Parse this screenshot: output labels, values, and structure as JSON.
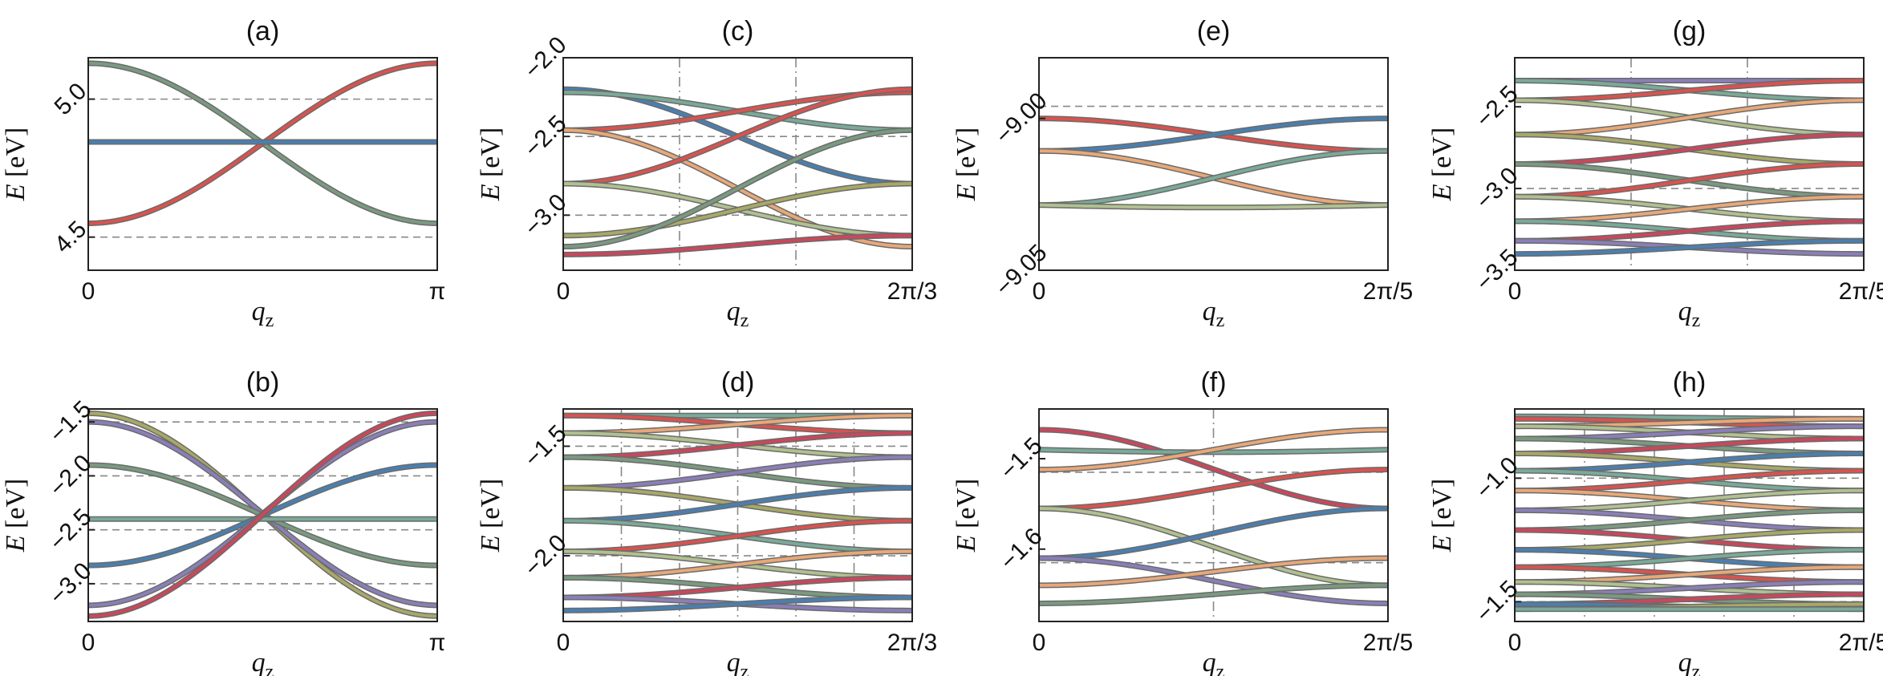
{
  "chart_data": [
    {
      "panel": "a",
      "type": "line",
      "title": "(a)",
      "xlabel": "q_z",
      "ylabel": "E [eV]",
      "xlim": [
        0,
        3.14159
      ],
      "ylim": [
        4.38,
        5.15
      ],
      "xticks": [
        {
          "value": 0,
          "label": "0"
        },
        {
          "value": 3.14159,
          "label": "π"
        }
      ],
      "yticks": [
        {
          "value": 4.5,
          "label": "4.5"
        },
        {
          "value": 5.0,
          "label": "5.0"
        }
      ],
      "hlines": [
        4.5,
        5.0
      ],
      "vlines": [],
      "bands": [
        {
          "name": "band-1",
          "e0": 5.13,
          "e1": 4.55,
          "shape": "cos",
          "color": "#7a9a80"
        },
        {
          "name": "band-2",
          "e0": 4.55,
          "e1": 5.13,
          "shape": "cos",
          "color": "#d9534f"
        },
        {
          "name": "band-3",
          "e0": 4.845,
          "e1": 4.845,
          "shape": "cos",
          "color": "#4a7fb0"
        }
      ]
    },
    {
      "panel": "b",
      "type": "line",
      "title": "(b)",
      "xlabel": "q_z",
      "ylabel": "E [eV]",
      "xlim": [
        0,
        3.14159
      ],
      "ylim": [
        -3.35,
        -1.38
      ],
      "xticks": [
        {
          "value": 0,
          "label": "0"
        },
        {
          "value": 3.14159,
          "label": "π"
        }
      ],
      "yticks": [
        {
          "value": -1.5,
          "label": "−1.5"
        },
        {
          "value": -2.0,
          "label": "−2.0"
        },
        {
          "value": -2.5,
          "label": "−2.5"
        },
        {
          "value": -3.0,
          "label": "−3.0"
        }
      ],
      "hlines": [
        -1.5,
        -2.0,
        -2.5,
        -3.0
      ],
      "vlines": [],
      "bands": [
        {
          "name": "band-1",
          "e0": -1.42,
          "e1": -3.3,
          "shape": "cos",
          "color": "#a8a868"
        },
        {
          "name": "band-2",
          "e0": -1.5,
          "e1": -3.2,
          "shape": "cos",
          "color": "#8a7fb8"
        },
        {
          "name": "band-3",
          "e0": -1.9,
          "e1": -2.83,
          "shape": "cos",
          "color": "#7a9a80"
        },
        {
          "name": "band-4",
          "e0": -2.4,
          "e1": -2.4,
          "shape": "cos",
          "color": "#7aaa98"
        },
        {
          "name": "band-5",
          "e0": -2.83,
          "e1": -1.9,
          "shape": "cos",
          "color": "#4a7fb0"
        },
        {
          "name": "band-6",
          "e0": -3.2,
          "e1": -1.5,
          "shape": "cos",
          "color": "#8a7fb8"
        },
        {
          "name": "band-7",
          "e0": -3.3,
          "e1": -1.42,
          "shape": "cos",
          "color": "#c9485b"
        }
      ]
    },
    {
      "panel": "c",
      "type": "line",
      "title": "(c)",
      "xlabel": "q_z",
      "ylabel": "E [eV]",
      "xlim": [
        0,
        2.0944
      ],
      "ylim": [
        -3.35,
        -2.0
      ],
      "xticks": [
        {
          "value": 0,
          "label": "0"
        },
        {
          "value": 2.0944,
          "label": "2π/3"
        }
      ],
      "yticks": [
        {
          "value": -2.0,
          "label": "−2.0"
        },
        {
          "value": -2.5,
          "label": "−2.5"
        },
        {
          "value": -3.0,
          "label": "−3.0"
        }
      ],
      "hlines": [
        -2.5,
        -3.0
      ],
      "vlines": [
        0.6981,
        1.3963
      ],
      "bands": [
        {
          "name": "band-1",
          "e0": -2.2,
          "e1": -2.8,
          "shape": "cos",
          "color": "#4a7fb0"
        },
        {
          "name": "band-2",
          "e0": -2.22,
          "e1": -2.46,
          "shape": "cos",
          "color": "#7aaa98"
        },
        {
          "name": "band-3",
          "e0": -2.46,
          "e1": -2.22,
          "shape": "cos",
          "color": "#d9534f"
        },
        {
          "name": "band-4",
          "e0": -2.46,
          "e1": -3.2,
          "shape": "cos",
          "color": "#e8a878"
        },
        {
          "name": "band-5",
          "e0": -2.8,
          "e1": -2.2,
          "shape": "cos",
          "color": "#d9534f"
        },
        {
          "name": "band-6",
          "e0": -2.8,
          "e1": -3.13,
          "shape": "cos",
          "color": "#b0c090"
        },
        {
          "name": "band-7",
          "e0": -3.13,
          "e1": -2.8,
          "shape": "cos",
          "color": "#a8a868"
        },
        {
          "name": "band-8",
          "e0": -3.2,
          "e1": -2.46,
          "shape": "cos",
          "color": "#7a9a80"
        },
        {
          "name": "band-9",
          "e0": -3.25,
          "e1": -3.13,
          "shape": "cos",
          "color": "#c9485b"
        }
      ]
    },
    {
      "panel": "e",
      "type": "line",
      "title": "(e)",
      "xlabel": "q_z",
      "ylabel": "E [eV]",
      "xlim": [
        0,
        1.2566
      ],
      "ylim": [
        -9.05,
        -8.98
      ],
      "xticks": [
        {
          "value": 0,
          "label": "0"
        },
        {
          "value": 1.2566,
          "label": "2π/5"
        }
      ],
      "yticks": [
        {
          "value": -9.0,
          "label": "−9.00"
        },
        {
          "value": -9.05,
          "label": "−9.05"
        }
      ],
      "hlines": [
        -8.996
      ],
      "vlines": [],
      "bands": [
        {
          "name": "band-1",
          "e0": -9.0,
          "e1": -9.0107,
          "shape": "cos",
          "color": "#d9534f"
        },
        {
          "name": "band-2",
          "e0": -9.0107,
          "e1": -9.0,
          "shape": "cos",
          "color": "#4a7fb0"
        },
        {
          "name": "band-3",
          "e0": -9.0107,
          "e1": -9.0285,
          "shape": "cos",
          "color": "#e8a878"
        },
        {
          "name": "band-4",
          "e0": -9.0285,
          "e1": -9.0107,
          "shape": "cos",
          "color": "#7aaa98"
        },
        {
          "name": "band-5",
          "e0": -9.0285,
          "e1": -9.0285,
          "shape": "sag",
          "color": "#b0c090"
        }
      ]
    },
    {
      "panel": "g",
      "type": "line",
      "title": "(g)",
      "xlabel": "q_z",
      "ylabel": "E [eV]",
      "xlim": [
        0,
        1.2566
      ],
      "ylim": [
        -3.5,
        -2.2
      ],
      "xticks": [
        {
          "value": 0,
          "label": "0"
        },
        {
          "value": 1.2566,
          "label": "2π/5"
        }
      ],
      "yticks": [
        {
          "value": -2.5,
          "label": "−2.5"
        },
        {
          "value": -3.0,
          "label": "−3.0"
        },
        {
          "value": -3.5,
          "label": "−3.5"
        }
      ],
      "hlines": [
        -3.0
      ],
      "vlines": [
        0.4189,
        0.8378
      ],
      "bands": [
        {
          "name": "band-1",
          "e0": -2.34,
          "e1": -2.34,
          "shape": "cos",
          "color": "#8a7fb8"
        },
        {
          "name": "band-2",
          "e0": -2.34,
          "e1": -2.46,
          "shape": "cos",
          "color": "#7aaa98"
        },
        {
          "name": "band-3",
          "e0": -2.46,
          "e1": -2.34,
          "shape": "cos",
          "color": "#d9534f"
        },
        {
          "name": "band-4",
          "e0": -2.46,
          "e1": -2.67,
          "shape": "cos",
          "color": "#b0c090"
        },
        {
          "name": "band-5",
          "e0": -2.67,
          "e1": -2.46,
          "shape": "cos",
          "color": "#e8a878"
        },
        {
          "name": "band-6",
          "e0": -2.67,
          "e1": -2.85,
          "shape": "cos",
          "color": "#a8a868"
        },
        {
          "name": "band-7",
          "e0": -2.85,
          "e1": -2.67,
          "shape": "cos",
          "color": "#c9485b"
        },
        {
          "name": "band-8",
          "e0": -2.85,
          "e1": -3.05,
          "shape": "cos",
          "color": "#7a9a80"
        },
        {
          "name": "band-9",
          "e0": -3.05,
          "e1": -2.85,
          "shape": "cos",
          "color": "#d9534f"
        },
        {
          "name": "band-10",
          "e0": -3.05,
          "e1": -3.2,
          "shape": "cos",
          "color": "#b0c090"
        },
        {
          "name": "band-11",
          "e0": -3.2,
          "e1": -3.05,
          "shape": "cos",
          "color": "#e8a878"
        },
        {
          "name": "band-12",
          "e0": -3.2,
          "e1": -3.32,
          "shape": "cos",
          "color": "#7aaa98"
        },
        {
          "name": "band-13",
          "e0": -3.32,
          "e1": -3.2,
          "shape": "cos",
          "color": "#c9485b"
        },
        {
          "name": "band-14",
          "e0": -3.32,
          "e1": -3.4,
          "shape": "cos",
          "color": "#8a7fb8"
        },
        {
          "name": "band-15",
          "e0": -3.4,
          "e1": -3.32,
          "shape": "cos",
          "color": "#4a7fb0"
        }
      ]
    },
    {
      "panel": "d",
      "type": "line",
      "title": "(d)",
      "xlabel": "q_z",
      "ylabel": "E [eV]",
      "xlim": [
        0,
        2.0944
      ],
      "ylim": [
        -2.3,
        -1.33
      ],
      "xticks": [
        {
          "value": 0,
          "label": "0"
        },
        {
          "value": 2.0944,
          "label": "2π/3"
        }
      ],
      "yticks": [
        {
          "value": -1.5,
          "label": "−1.5"
        },
        {
          "value": -2.0,
          "label": "−2.0"
        }
      ],
      "hlines": [
        -1.5,
        -2.0
      ],
      "vlines": [
        0.349,
        0.6981,
        1.0472,
        1.3963,
        1.7453
      ],
      "bands": [
        {
          "name": "band-1",
          "e0": -1.36,
          "e1": -1.36,
          "shape": "cos",
          "color": "#7aaa98"
        },
        {
          "name": "band-2",
          "e0": -1.36,
          "e1": -1.44,
          "shape": "cos",
          "color": "#d9534f"
        },
        {
          "name": "band-3",
          "e0": -1.44,
          "e1": -1.36,
          "shape": "cos",
          "color": "#e8a878"
        },
        {
          "name": "band-4",
          "e0": -1.44,
          "e1": -1.55,
          "shape": "cos",
          "color": "#b0c090"
        },
        {
          "name": "band-5",
          "e0": -1.55,
          "e1": -1.44,
          "shape": "cos",
          "color": "#c9485b"
        },
        {
          "name": "band-6",
          "e0": -1.55,
          "e1": -1.69,
          "shape": "cos",
          "color": "#7a9a80"
        },
        {
          "name": "band-7",
          "e0": -1.69,
          "e1": -1.55,
          "shape": "cos",
          "color": "#8a7fb8"
        },
        {
          "name": "band-8",
          "e0": -1.69,
          "e1": -1.84,
          "shape": "cos",
          "color": "#a8a868"
        },
        {
          "name": "band-9",
          "e0": -1.84,
          "e1": -1.69,
          "shape": "cos",
          "color": "#4a7fb0"
        },
        {
          "name": "band-10",
          "e0": -1.84,
          "e1": -1.98,
          "shape": "cos",
          "color": "#7aaa98"
        },
        {
          "name": "band-11",
          "e0": -1.98,
          "e1": -1.84,
          "shape": "cos",
          "color": "#d9534f"
        },
        {
          "name": "band-12",
          "e0": -1.98,
          "e1": -2.1,
          "shape": "cos",
          "color": "#b0c090"
        },
        {
          "name": "band-13",
          "e0": -2.1,
          "e1": -1.98,
          "shape": "cos",
          "color": "#e8a878"
        },
        {
          "name": "band-14",
          "e0": -2.1,
          "e1": -2.19,
          "shape": "cos",
          "color": "#7a9a80"
        },
        {
          "name": "band-15",
          "e0": -2.19,
          "e1": -2.1,
          "shape": "cos",
          "color": "#c9485b"
        },
        {
          "name": "band-16",
          "e0": -2.19,
          "e1": -2.25,
          "shape": "cos",
          "color": "#8a7fb8"
        },
        {
          "name": "band-17",
          "e0": -2.25,
          "e1": -2.19,
          "shape": "cos",
          "color": "#4a7fb0"
        }
      ]
    },
    {
      "panel": "f",
      "type": "line",
      "title": "(f)",
      "xlabel": "q_z",
      "ylabel": "E [eV]",
      "xlim": [
        0,
        1.2566
      ],
      "ylim": [
        -1.68,
        -1.445
      ],
      "xticks": [
        {
          "value": 0,
          "label": "0"
        },
        {
          "value": 1.2566,
          "label": "2π/5"
        }
      ],
      "yticks": [
        {
          "value": -1.5,
          "label": "−1.5"
        },
        {
          "value": -1.6,
          "label": "−1.6"
        }
      ],
      "hlines": [
        -1.515,
        -1.615
      ],
      "vlines": [
        0.6283
      ],
      "bands": [
        {
          "name": "band-1",
          "e0": -1.468,
          "e1": -1.555,
          "shape": "cos",
          "color": "#c9485b"
        },
        {
          "name": "band-2",
          "e0": -1.49,
          "e1": -1.49,
          "shape": "sag",
          "color": "#7aaa98"
        },
        {
          "name": "band-3",
          "e0": -1.512,
          "e1": -1.468,
          "shape": "cos",
          "color": "#e8a878"
        },
        {
          "name": "band-4",
          "e0": -1.555,
          "e1": -1.512,
          "shape": "cos",
          "color": "#d9534f"
        },
        {
          "name": "band-5",
          "e0": -1.555,
          "e1": -1.64,
          "shape": "cos",
          "color": "#b0c090"
        },
        {
          "name": "band-6",
          "e0": -1.61,
          "e1": -1.555,
          "shape": "cos",
          "color": "#4a7fb0"
        },
        {
          "name": "band-7",
          "e0": -1.61,
          "e1": -1.66,
          "shape": "cos",
          "color": "#8a7fb8"
        },
        {
          "name": "band-8",
          "e0": -1.64,
          "e1": -1.61,
          "shape": "cos",
          "color": "#e8a878"
        },
        {
          "name": "band-9",
          "e0": -1.66,
          "e1": -1.64,
          "shape": "cos",
          "color": "#7a9a80"
        }
      ]
    },
    {
      "panel": "h",
      "type": "line",
      "title": "(h)",
      "xlabel": "q_z",
      "ylabel": "E [eV]",
      "xlim": [
        0,
        1.2566
      ],
      "ylim": [
        -1.58,
        -0.72
      ],
      "xticks": [
        {
          "value": 0,
          "label": "0"
        },
        {
          "value": 1.2566,
          "label": "2π/5"
        }
      ],
      "yticks": [
        {
          "value": -1.0,
          "label": "−1.0"
        },
        {
          "value": -1.5,
          "label": "−1.5"
        }
      ],
      "hlines": [
        -1.0,
        -1.5
      ],
      "vlines": [
        0.2513,
        0.5027,
        0.754,
        1.0053
      ],
      "bands": [
        {
          "name": "band-1",
          "e0": -0.75,
          "e1": -0.76,
          "shape": "cos",
          "color": "#7aaa98"
        },
        {
          "name": "band-2",
          "e0": -0.76,
          "e1": -0.79,
          "shape": "cos",
          "color": "#d9534f"
        },
        {
          "name": "band-3",
          "e0": -0.79,
          "e1": -0.76,
          "shape": "cos",
          "color": "#e8a878"
        },
        {
          "name": "band-4",
          "e0": -0.79,
          "e1": -0.84,
          "shape": "cos",
          "color": "#b0c090"
        },
        {
          "name": "band-5",
          "e0": -0.84,
          "e1": -0.79,
          "shape": "cos",
          "color": "#8a7fb8"
        },
        {
          "name": "band-6",
          "e0": -0.84,
          "e1": -0.9,
          "shape": "cos",
          "color": "#7a9a80"
        },
        {
          "name": "band-7",
          "e0": -0.9,
          "e1": -0.84,
          "shape": "cos",
          "color": "#c9485b"
        },
        {
          "name": "band-8",
          "e0": -0.9,
          "e1": -0.97,
          "shape": "cos",
          "color": "#a8a868"
        },
        {
          "name": "band-9",
          "e0": -0.97,
          "e1": -0.9,
          "shape": "cos",
          "color": "#4a7fb0"
        },
        {
          "name": "band-10",
          "e0": -0.97,
          "e1": -1.05,
          "shape": "cos",
          "color": "#7aaa98"
        },
        {
          "name": "band-11",
          "e0": -1.05,
          "e1": -0.97,
          "shape": "cos",
          "color": "#d9534f"
        },
        {
          "name": "band-12",
          "e0": -1.05,
          "e1": -1.13,
          "shape": "cos",
          "color": "#e8a878"
        },
        {
          "name": "band-13",
          "e0": -1.13,
          "e1": -1.05,
          "shape": "cos",
          "color": "#b0c090"
        },
        {
          "name": "band-14",
          "e0": -1.13,
          "e1": -1.21,
          "shape": "cos",
          "color": "#8a7fb8"
        },
        {
          "name": "band-15",
          "e0": -1.21,
          "e1": -1.13,
          "shape": "cos",
          "color": "#7a9a80"
        },
        {
          "name": "band-16",
          "e0": -1.21,
          "e1": -1.29,
          "shape": "cos",
          "color": "#c9485b"
        },
        {
          "name": "band-17",
          "e0": -1.29,
          "e1": -1.21,
          "shape": "cos",
          "color": "#a8a868"
        },
        {
          "name": "band-18",
          "e0": -1.29,
          "e1": -1.36,
          "shape": "cos",
          "color": "#4a7fb0"
        },
        {
          "name": "band-19",
          "e0": -1.36,
          "e1": -1.29,
          "shape": "cos",
          "color": "#7aaa98"
        },
        {
          "name": "band-20",
          "e0": -1.36,
          "e1": -1.42,
          "shape": "cos",
          "color": "#d9534f"
        },
        {
          "name": "band-21",
          "e0": -1.42,
          "e1": -1.36,
          "shape": "cos",
          "color": "#e8a878"
        },
        {
          "name": "band-22",
          "e0": -1.42,
          "e1": -1.47,
          "shape": "cos",
          "color": "#b0c090"
        },
        {
          "name": "band-23",
          "e0": -1.47,
          "e1": -1.42,
          "shape": "cos",
          "color": "#8a7fb8"
        },
        {
          "name": "band-24",
          "e0": -1.47,
          "e1": -1.51,
          "shape": "cos",
          "color": "#7a9a80"
        },
        {
          "name": "band-25",
          "e0": -1.51,
          "e1": -1.47,
          "shape": "cos",
          "color": "#c9485b"
        },
        {
          "name": "band-26",
          "e0": -1.51,
          "e1": -1.53,
          "shape": "cos",
          "color": "#4a7fb0"
        },
        {
          "name": "band-27",
          "e0": -1.53,
          "e1": -1.51,
          "shape": "cos",
          "color": "#a8a868"
        },
        {
          "name": "band-28",
          "e0": -1.53,
          "e1": -1.53,
          "shape": "cos",
          "color": "#7aaa98"
        }
      ]
    }
  ]
}
